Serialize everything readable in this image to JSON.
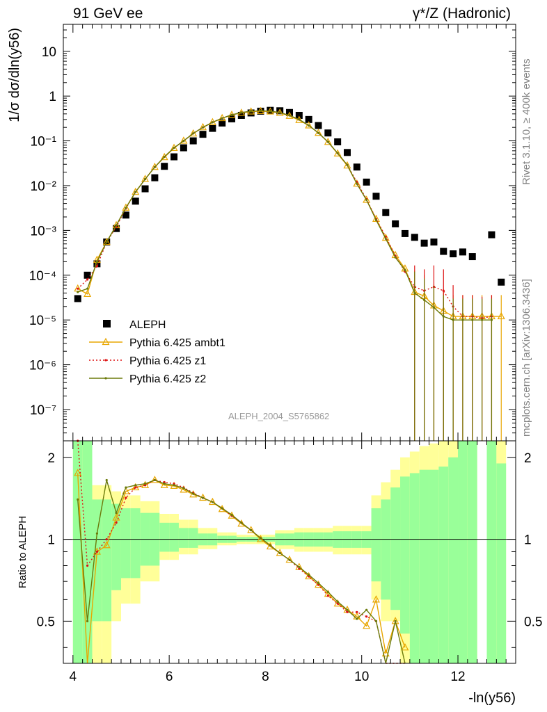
{
  "header": {
    "left": "91 GeV ee",
    "right": "γ*/Z (Hadronic)"
  },
  "side": {
    "rivet": "Rivet 3.1.10, ≥ 400k events",
    "mcplots": "mcplots.cern.ch [arXiv:1306.3436]"
  },
  "watermark": "ALEPH_2004_S5765862",
  "colors": {
    "aleph": "#000000",
    "ambt1": "#e8a600",
    "z1": "#dd1111",
    "z2": "#6b7a0a",
    "band_yellow": "#ffff99",
    "band_green": "#99ff99"
  },
  "chart_data": [
    {
      "type": "scatter",
      "ylabel": "1/σ dσ/dln(y56)",
      "yscale": "log",
      "xlim": [
        3.8,
        13.2
      ],
      "ylim": [
        2e-08,
        40
      ],
      "yticklabels": [
        "10⁻⁷",
        "10⁻⁶",
        "10⁻⁵",
        "10⁻⁴",
        "10⁻³",
        "10⁻²",
        "10⁻¹",
        "1",
        "10"
      ],
      "legend_position": "middle-left",
      "x": [
        4.1,
        4.3,
        4.5,
        4.7,
        4.9,
        5.1,
        5.3,
        5.5,
        5.7,
        5.9,
        6.1,
        6.3,
        6.5,
        6.7,
        6.9,
        7.1,
        7.3,
        7.5,
        7.7,
        7.9,
        8.1,
        8.3,
        8.5,
        8.7,
        8.9,
        9.1,
        9.3,
        9.5,
        9.7,
        9.9,
        10.1,
        10.3,
        10.5,
        10.7,
        10.9,
        11.1,
        11.3,
        11.5,
        11.7,
        11.9,
        12.1,
        12.3,
        12.5,
        12.7,
        12.9
      ],
      "series": [
        {
          "name": "ALEPH",
          "values": [
            3e-05,
            0.0001,
            0.00018,
            0.00055,
            0.0011,
            0.0022,
            0.0045,
            0.0085,
            0.015,
            0.027,
            0.044,
            0.07,
            0.1,
            0.14,
            0.19,
            0.25,
            0.31,
            0.37,
            0.42,
            0.46,
            0.48,
            0.47,
            0.43,
            0.37,
            0.3,
            0.22,
            0.15,
            0.095,
            0.055,
            0.026,
            0.012,
            0.0058,
            0.0025,
            0.0014,
            0.00085,
            0.0007,
            0.00052,
            0.00055,
            0.00034,
            0.0003,
            0.00033,
            0.00026,
            null,
            0.0008,
            7e-05
          ]
        },
        {
          "name": "Pythia 6.425 ambt1",
          "values": [
            5e-05,
            3.8e-05,
            0.00022,
            0.00055,
            0.0013,
            0.0032,
            0.0072,
            0.014,
            0.026,
            0.043,
            0.069,
            0.1,
            0.145,
            0.2,
            0.26,
            0.32,
            0.38,
            0.42,
            0.45,
            0.46,
            0.45,
            0.42,
            0.36,
            0.29,
            0.22,
            0.15,
            0.094,
            0.052,
            0.028,
            0.011,
            0.0048,
            0.0018,
            0.00068,
            0.00028,
            0.00014,
            4.2e-05,
            3.4e-05,
            2.1e-05,
            1.6e-05,
            1.2e-05,
            1.2e-05,
            1.2e-05,
            1.2e-05,
            1.2e-05,
            1.2e-05
          ]
        },
        {
          "name": "Pythia 6.425 z1",
          "values": [
            5e-05,
            8e-05,
            0.00016,
            0.00055,
            0.0012,
            0.0031,
            0.0072,
            0.014,
            0.026,
            0.044,
            0.07,
            0.1,
            0.147,
            0.2,
            0.26,
            0.32,
            0.38,
            0.43,
            0.46,
            0.47,
            0.46,
            0.43,
            0.37,
            0.3,
            0.22,
            0.15,
            0.095,
            0.053,
            0.029,
            0.012,
            0.005,
            0.0018,
            0.00072,
            0.00027,
            0.00012,
            5.5e-05,
            4.5e-05,
            5.5e-05,
            4.5e-05,
            2e-05,
            1.2e-05,
            1.2e-05,
            1.1e-05,
            1.2e-05,
            null
          ]
        },
        {
          "name": "Pythia 6.425 z2",
          "values": [
            4.2e-05,
            5e-05,
            0.0002,
            0.00055,
            0.0013,
            0.0032,
            0.0072,
            0.014,
            0.026,
            0.044,
            0.07,
            0.1,
            0.147,
            0.2,
            0.26,
            0.32,
            0.38,
            0.43,
            0.46,
            0.47,
            0.46,
            0.43,
            0.37,
            0.3,
            0.22,
            0.15,
            0.095,
            0.053,
            0.029,
            0.011,
            0.0048,
            0.0017,
            0.00065,
            0.00025,
            0.00013,
            4e-05,
            2.8e-05,
            1.9e-05,
            1.2e-05,
            1e-05,
            1e-05,
            1e-05,
            1e-05,
            1e-05,
            null
          ]
        }
      ]
    },
    {
      "type": "line",
      "ylabel": "Ratio to ALEPH",
      "xlabel": "-ln(y56)",
      "xlim": [
        3.8,
        13.2
      ],
      "ylim": [
        0.35,
        2.3
      ],
      "xticklabels": [
        "4",
        "6",
        "8",
        "10",
        "12"
      ],
      "yticklabels": [
        "0.5",
        "1",
        "2"
      ],
      "x": [
        4.1,
        4.3,
        4.5,
        4.7,
        4.9,
        5.1,
        5.3,
        5.5,
        5.7,
        5.9,
        6.1,
        6.3,
        6.5,
        6.7,
        6.9,
        7.1,
        7.3,
        7.5,
        7.7,
        7.9,
        8.1,
        8.3,
        8.5,
        8.7,
        8.9,
        9.1,
        9.3,
        9.5,
        9.7,
        9.9,
        10.1,
        10.3,
        10.5,
        10.7,
        10.9
      ],
      "band_yellow": [
        [
          0.35,
          2.3
        ],
        [
          0.35,
          2.3
        ],
        [
          0.35,
          1.58
        ],
        [
          0.35,
          1.58
        ],
        [
          0.5,
          1.5
        ],
        [
          0.58,
          1.45
        ],
        [
          0.58,
          1.45
        ],
        [
          0.7,
          1.38
        ],
        [
          0.7,
          1.38
        ],
        [
          0.84,
          1.24
        ],
        [
          0.84,
          1.24
        ],
        [
          0.88,
          1.18
        ],
        [
          0.88,
          1.18
        ],
        [
          0.92,
          1.1
        ],
        [
          0.92,
          1.1
        ],
        [
          0.95,
          1.06
        ],
        [
          0.95,
          1.06
        ],
        [
          0.96,
          1.04
        ],
        [
          0.96,
          1.04
        ],
        [
          0.96,
          1.04
        ],
        [
          0.96,
          1.04
        ],
        [
          0.92,
          1.08
        ],
        [
          0.92,
          1.08
        ],
        [
          0.9,
          1.1
        ],
        [
          0.9,
          1.1
        ],
        [
          0.9,
          1.1
        ],
        [
          0.9,
          1.1
        ],
        [
          0.88,
          1.12
        ],
        [
          0.88,
          1.12
        ],
        [
          0.88,
          1.12
        ],
        [
          0.88,
          1.12
        ],
        [
          0.6,
          1.45
        ],
        [
          0.5,
          1.62
        ],
        [
          0.5,
          1.8
        ],
        [
          0.35,
          2.0
        ]
      ],
      "band_green": [
        [
          0.35,
          2.3
        ],
        [
          0.35,
          2.3
        ],
        [
          0.5,
          1.4
        ],
        [
          0.5,
          1.4
        ],
        [
          0.65,
          1.35
        ],
        [
          0.72,
          1.3
        ],
        [
          0.72,
          1.3
        ],
        [
          0.8,
          1.25
        ],
        [
          0.8,
          1.25
        ],
        [
          0.9,
          1.15
        ],
        [
          0.9,
          1.15
        ],
        [
          0.93,
          1.1
        ],
        [
          0.93,
          1.1
        ],
        [
          0.95,
          1.05
        ],
        [
          0.95,
          1.05
        ],
        [
          0.97,
          1.03
        ],
        [
          0.97,
          1.03
        ],
        [
          0.98,
          1.02
        ],
        [
          0.98,
          1.02
        ],
        [
          0.98,
          1.02
        ],
        [
          0.98,
          1.02
        ],
        [
          0.95,
          1.05
        ],
        [
          0.95,
          1.05
        ],
        [
          0.94,
          1.06
        ],
        [
          0.94,
          1.06
        ],
        [
          0.94,
          1.06
        ],
        [
          0.94,
          1.06
        ],
        [
          0.93,
          1.07
        ],
        [
          0.93,
          1.07
        ],
        [
          0.93,
          1.07
        ],
        [
          0.93,
          1.07
        ],
        [
          0.7,
          1.3
        ],
        [
          0.6,
          1.4
        ],
        [
          0.55,
          1.55
        ],
        [
          0.45,
          1.7
        ]
      ],
      "band_far": [
        {
          "x0": 11.0,
          "x1": 11.2,
          "yellow": [
            0.35,
            2.1
          ],
          "green": [
            0.35,
            1.75
          ]
        },
        {
          "x0": 11.2,
          "x1": 11.4,
          "yellow": [
            0.35,
            2.2
          ],
          "green": [
            0.35,
            1.8
          ]
        },
        {
          "x0": 11.4,
          "x1": 11.6,
          "yellow": [
            0.35,
            2.25
          ],
          "green": [
            0.35,
            1.8
          ]
        },
        {
          "x0": 11.6,
          "x1": 11.8,
          "yellow": [
            0.35,
            2.3
          ],
          "green": [
            0.35,
            1.85
          ]
        },
        {
          "x0": 11.8,
          "x1": 12.0,
          "yellow": [
            0.35,
            2.3
          ],
          "green": [
            0.35,
            2.0
          ]
        },
        {
          "x0": 12.0,
          "x1": 12.2,
          "yellow": [
            0.35,
            2.3
          ],
          "green": [
            0.35,
            2.3
          ]
        },
        {
          "x0": 12.2,
          "x1": 12.4,
          "yellow": [
            0.35,
            2.3
          ],
          "green": [
            0.35,
            2.3
          ]
        },
        {
          "x0": 12.6,
          "x1": 12.8,
          "yellow": [
            0.35,
            2.3
          ],
          "green": [
            0.35,
            2.3
          ]
        },
        {
          "x0": 12.8,
          "x1": 13.0,
          "yellow": [
            0.35,
            2.3
          ],
          "green": [
            0.35,
            1.9
          ]
        }
      ],
      "series": [
        {
          "name": "Pythia 6.425 ambt1",
          "values": [
            1.75,
            0.3,
            0.9,
            0.95,
            1.2,
            1.5,
            1.55,
            1.58,
            1.65,
            1.58,
            1.57,
            1.52,
            1.46,
            1.42,
            1.37,
            1.29,
            1.22,
            1.14,
            1.08,
            1.0,
            0.94,
            0.89,
            0.84,
            0.79,
            0.73,
            0.68,
            0.63,
            0.58,
            0.55,
            0.52,
            0.48,
            0.6,
            0.38,
            0.5,
            0.4
          ]
        },
        {
          "name": "Pythia 6.425 z1",
          "values": [
            2.3,
            0.8,
            0.9,
            1.0,
            1.15,
            1.42,
            1.55,
            1.58,
            1.65,
            1.62,
            1.6,
            1.55,
            1.48,
            1.42,
            1.37,
            1.3,
            1.22,
            1.15,
            1.08,
            1.01,
            0.95,
            0.89,
            0.84,
            0.78,
            0.73,
            0.68,
            0.62,
            0.58,
            0.54,
            0.54,
            0.52,
            0.5,
            0.35,
            0.35,
            0.35
          ]
        },
        {
          "name": "Pythia 6.425 z2",
          "values": [
            1.4,
            0.5,
            1.05,
            1.65,
            1.25,
            1.55,
            1.58,
            1.6,
            1.65,
            1.6,
            1.58,
            1.54,
            1.47,
            1.42,
            1.37,
            1.3,
            1.23,
            1.15,
            1.08,
            1.01,
            0.95,
            0.89,
            0.84,
            0.79,
            0.74,
            0.69,
            0.64,
            0.59,
            0.55,
            0.51,
            0.55,
            0.5,
            0.35,
            0.5,
            0.35
          ]
        }
      ]
    }
  ]
}
